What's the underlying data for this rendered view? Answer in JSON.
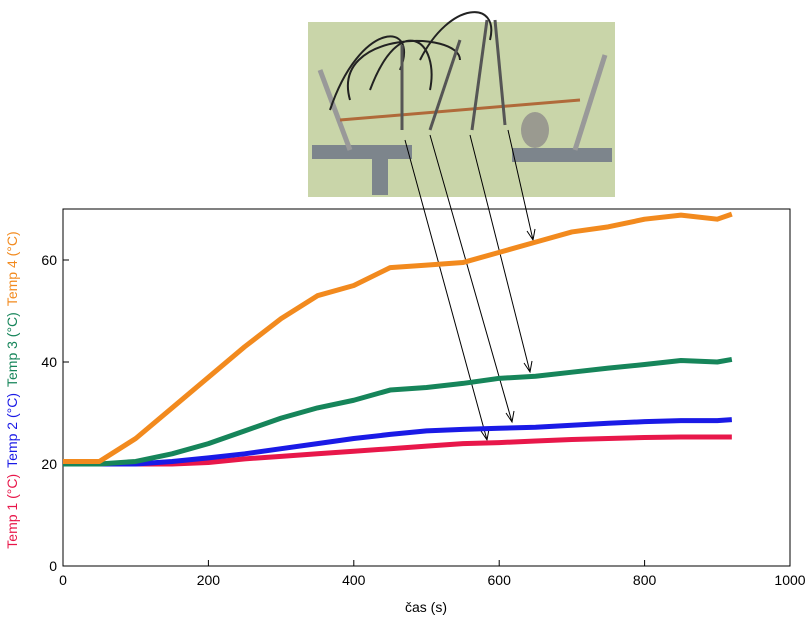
{
  "chart_data": {
    "type": "line",
    "x_label": "čas (s)",
    "x": [
      0,
      50,
      100,
      150,
      200,
      250,
      300,
      350,
      400,
      450,
      500,
      550,
      600,
      650,
      700,
      750,
      800,
      850,
      900,
      920
    ],
    "series": [
      {
        "name": "Temp 1 (°C)",
        "color": "#e8174a",
        "values": [
          20,
          20,
          20,
          20,
          20.3,
          21,
          21.5,
          22,
          22.5,
          23,
          23.5,
          24,
          24.2,
          24.5,
          24.8,
          25,
          25.2,
          25.3,
          25.3,
          25.3
        ]
      },
      {
        "name": "Temp 2 (°C)",
        "color": "#1a1ae6",
        "values": [
          20,
          20,
          20,
          20.5,
          21.2,
          22,
          23,
          24,
          25,
          25.8,
          26.5,
          26.8,
          27,
          27.2,
          27.6,
          28,
          28.3,
          28.5,
          28.5,
          28.7
        ]
      },
      {
        "name": "Temp 3 (°C)",
        "color": "#16855a",
        "values": [
          20,
          20,
          20.5,
          22,
          24,
          26.5,
          29,
          31,
          32.5,
          34.5,
          35,
          35.8,
          36.8,
          37.2,
          38,
          38.8,
          39.5,
          40.3,
          40,
          40.5
        ]
      },
      {
        "name": "Temp 4 (°C)",
        "color": "#f28a1e",
        "values": [
          20.5,
          20.5,
          25,
          31,
          37,
          43,
          48.5,
          53,
          55,
          58.5,
          59,
          59.5,
          61.5,
          63.5,
          65.5,
          66.5,
          68,
          68.8,
          68,
          69
        ]
      }
    ],
    "xlim": [
      0,
      1000
    ],
    "xticks": [
      0,
      200,
      400,
      600,
      800,
      1000
    ],
    "ylim": [
      0,
      70
    ],
    "yticks": [
      0,
      20,
      40,
      60
    ]
  }
}
